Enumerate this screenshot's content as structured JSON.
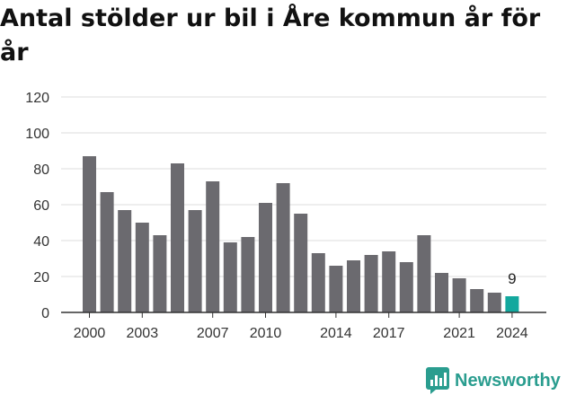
{
  "title": "Antal stölder ur bil i Åre kommun år för år",
  "brand": {
    "name": "Newsworthy",
    "icon": "newsworthy-logo-icon",
    "color": "#2a9d8f"
  },
  "colors": {
    "bar": "#6b6a6f",
    "highlight": "#13a89e",
    "grid": "#dddddd",
    "axis": "#333333"
  },
  "chart_data": {
    "type": "bar",
    "title": "Antal stölder ur bil i Åre kommun år för år",
    "xlabel": "",
    "ylabel": "",
    "categories": [
      "2000",
      "2001",
      "2002",
      "2003",
      "2004",
      "2005",
      "2006",
      "2007",
      "2008",
      "2009",
      "2010",
      "2011",
      "2012",
      "2013",
      "2014",
      "2015",
      "2016",
      "2017",
      "2018",
      "2019",
      "2020",
      "2021",
      "2022",
      "2023",
      "2024"
    ],
    "values": [
      87,
      67,
      57,
      50,
      43,
      83,
      57,
      73,
      39,
      42,
      61,
      72,
      55,
      33,
      26,
      29,
      32,
      34,
      28,
      43,
      22,
      19,
      13,
      11,
      9
    ],
    "x_tick_labels": [
      "2000",
      "2003",
      "2007",
      "2010",
      "2014",
      "2017",
      "2021",
      "2024"
    ],
    "y_ticks": [
      0,
      20,
      40,
      60,
      80,
      100,
      120
    ],
    "ylim": [
      0,
      120
    ],
    "highlight": {
      "category": "2024",
      "label": "9"
    },
    "grid": true,
    "legend": "none"
  }
}
